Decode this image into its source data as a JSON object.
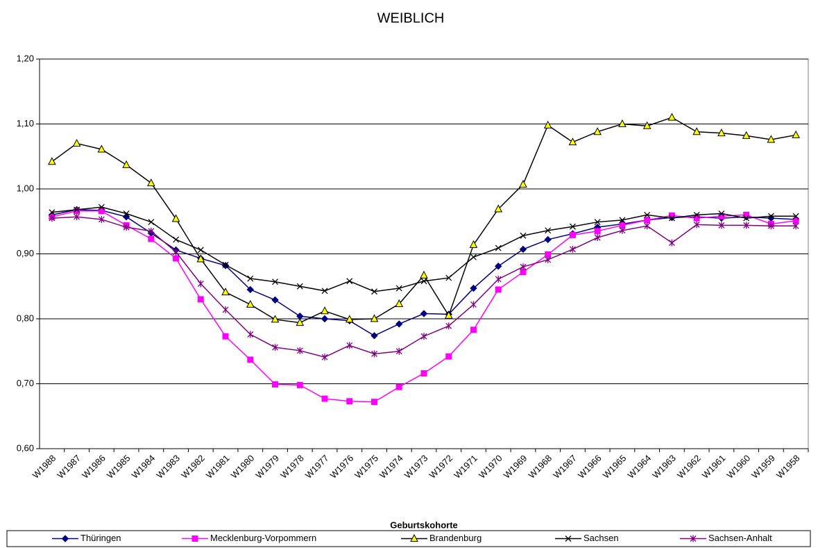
{
  "chart_data": {
    "type": "line",
    "title": "WEIBLICH",
    "x_label": "Geburtskohorte",
    "categories": [
      "W1988",
      "W1987",
      "W1986",
      "W1985",
      "W1984",
      "W1983",
      "W1982",
      "W1981",
      "W1980",
      "W1979",
      "W1978",
      "W1977",
      "W1976",
      "W1975",
      "W1974",
      "W1973",
      "W1972",
      "W1971",
      "W1970",
      "W1969",
      "W1968",
      "W1967",
      "W1966",
      "W1965",
      "W1964",
      "W1963",
      "W1962",
      "W1961",
      "W1960",
      "W1959",
      "W1958"
    ],
    "ylim": [
      0.6,
      1.2
    ],
    "yticks": [
      {
        "value": 0.6,
        "label": "0,60"
      },
      {
        "value": 0.7,
        "label": "0,70"
      },
      {
        "value": 0.8,
        "label": "0,80"
      },
      {
        "value": 0.9,
        "label": "0,90"
      },
      {
        "value": 1.0,
        "label": "1,00"
      },
      {
        "value": 1.1,
        "label": "1,10"
      },
      {
        "value": 1.2,
        "label": "1,20"
      }
    ],
    "grid": true,
    "legend": "bottom",
    "series": [
      {
        "name": "Thüringen",
        "color": "#000080",
        "marker": "diamond",
        "marker_fill": "#000080",
        "values": [
          0.96,
          0.968,
          0.967,
          0.957,
          0.932,
          0.906,
          0.893,
          0.882,
          0.845,
          0.829,
          0.804,
          0.8,
          0.797,
          0.774,
          0.792,
          0.808,
          0.807,
          0.847,
          0.881,
          0.907,
          0.922,
          0.931,
          0.941,
          0.946,
          0.952,
          0.956,
          0.957,
          0.955,
          0.957,
          0.955,
          0.953
        ]
      },
      {
        "name": "Mecklenburg-Vorpommern",
        "color": "#ff00ff",
        "marker": "square",
        "marker_fill": "#ff00ff",
        "values": [
          0.957,
          0.966,
          0.966,
          0.944,
          0.923,
          0.893,
          0.83,
          0.773,
          0.737,
          0.699,
          0.698,
          0.677,
          0.673,
          0.672,
          0.695,
          0.716,
          0.742,
          0.783,
          0.845,
          0.872,
          0.899,
          0.929,
          0.935,
          0.944,
          0.952,
          0.959,
          0.955,
          0.958,
          0.96,
          0.946,
          0.951
        ]
      },
      {
        "name": "Brandenburg",
        "color": "#000000",
        "marker": "triangle",
        "marker_fill": "#ffff00",
        "values": [
          1.042,
          1.07,
          1.061,
          1.037,
          1.009,
          0.954,
          0.892,
          0.841,
          0.822,
          0.799,
          0.794,
          0.812,
          0.799,
          0.8,
          0.823,
          0.867,
          0.805,
          0.914,
          0.969,
          1.007,
          1.098,
          1.072,
          1.088,
          1.1,
          1.097,
          1.11,
          1.088,
          1.086,
          1.082,
          1.076,
          1.083
        ]
      },
      {
        "name": "Sachsen",
        "color": "#000000",
        "marker": "x",
        "marker_fill": "#000000",
        "values": [
          0.964,
          0.968,
          0.972,
          0.962,
          0.949,
          0.922,
          0.906,
          0.883,
          0.862,
          0.857,
          0.85,
          0.843,
          0.858,
          0.842,
          0.847,
          0.858,
          0.863,
          0.895,
          0.909,
          0.928,
          0.936,
          0.942,
          0.949,
          0.952,
          0.96,
          0.955,
          0.96,
          0.962,
          0.955,
          0.958,
          0.958
        ]
      },
      {
        "name": "Sachsen-Anhalt",
        "color": "#800080",
        "marker": "star",
        "marker_fill": "#800080",
        "values": [
          0.955,
          0.957,
          0.953,
          0.941,
          0.935,
          0.903,
          0.854,
          0.814,
          0.776,
          0.756,
          0.751,
          0.741,
          0.759,
          0.746,
          0.75,
          0.773,
          0.789,
          0.822,
          0.861,
          0.88,
          0.891,
          0.907,
          0.925,
          0.936,
          0.943,
          0.917,
          0.945,
          0.944,
          0.944,
          0.943,
          0.943
        ]
      }
    ]
  }
}
